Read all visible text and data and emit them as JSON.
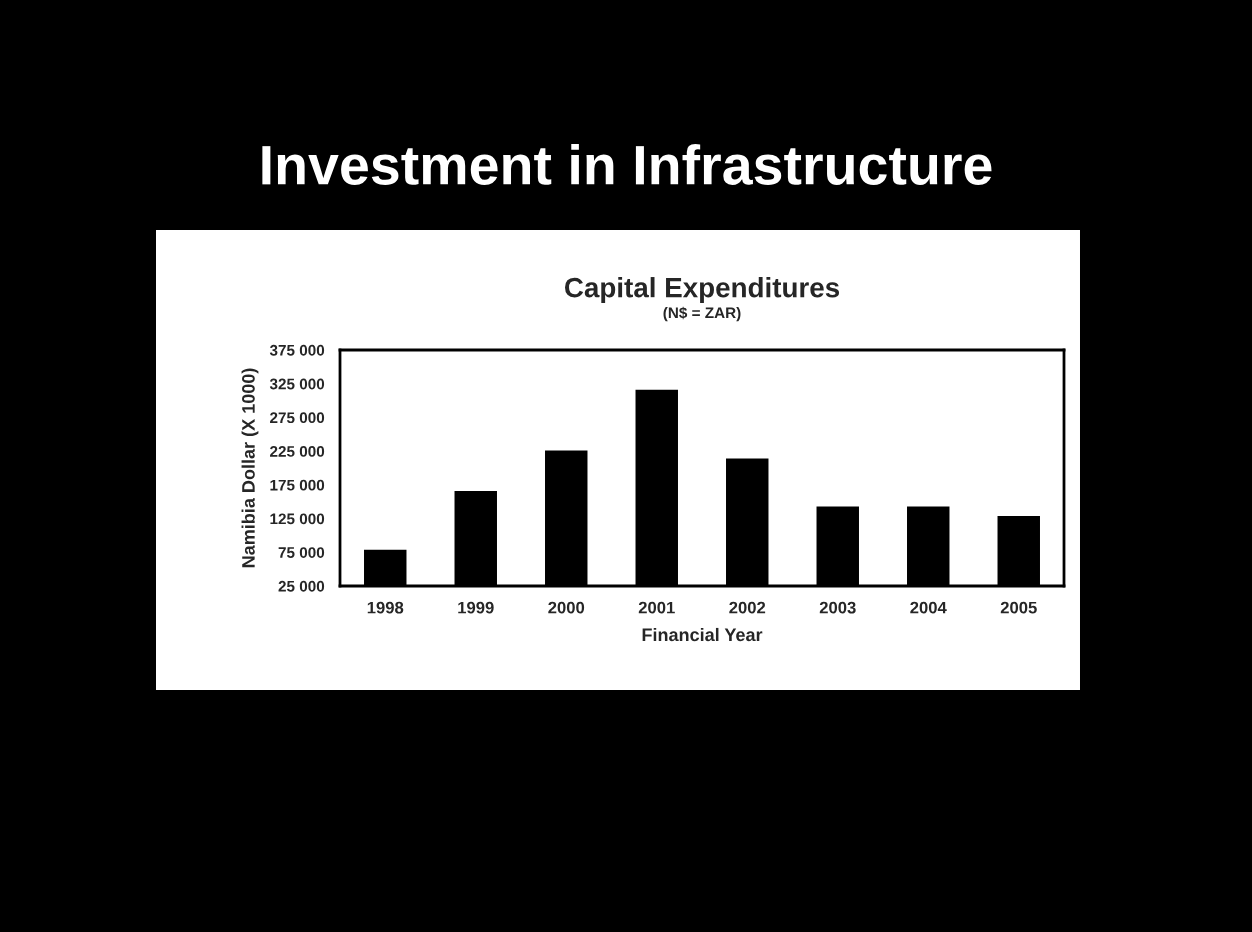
{
  "chart_data": {
    "type": "bar",
    "title": "Capital Expenditures",
    "subtitle": "(N$ = ZAR)",
    "annotations": [
      "Investment in Infrastructure"
    ],
    "xlabel": "Financial Year",
    "ylabel": "Namibia Dollar (X 1000)",
    "categories": [
      "1998",
      "1999",
      "2000",
      "2001",
      "2002",
      "2003",
      "2004",
      "2005"
    ],
    "values": [
      81000,
      168000,
      228000,
      318000,
      216000,
      145000,
      145000,
      131000
    ],
    "color": "#000000",
    "ylim": [
      25000,
      375000
    ],
    "yticks": [
      {
        "value": 25000,
        "label": "25 000"
      },
      {
        "value": 75000,
        "label": "75 000"
      },
      {
        "value": 125000,
        "label": "125 000"
      },
      {
        "value": 175000,
        "label": "175 000"
      },
      {
        "value": 225000,
        "label": "225 000"
      },
      {
        "value": 275000,
        "label": "275 000"
      },
      {
        "value": 325000,
        "label": "325 000"
      },
      {
        "value": 375000,
        "label": "375 000"
      }
    ],
    "grid": false,
    "legend": false
  }
}
